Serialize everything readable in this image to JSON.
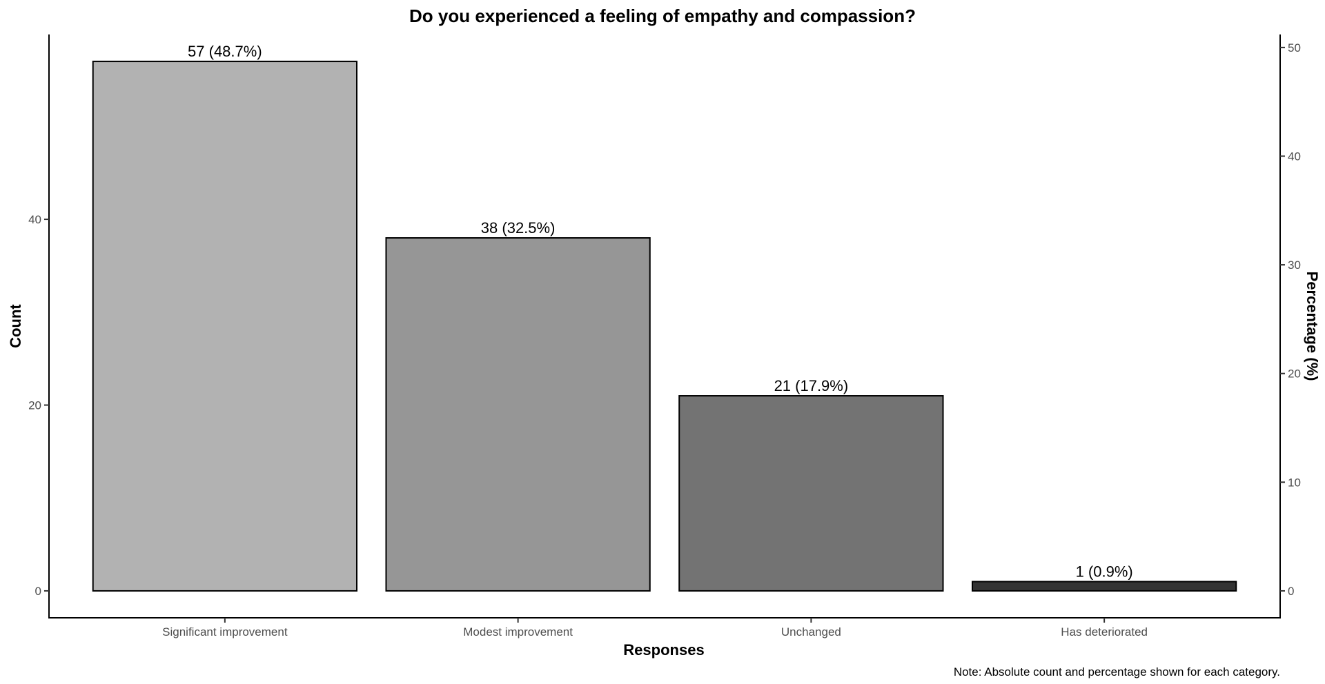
{
  "chart_data": {
    "type": "bar",
    "title": "Do you experienced a feeling of empathy and compassion?",
    "xlabel": "Responses",
    "ylabel": "Count",
    "y2label": "Percentage (%)",
    "note": "Note: Absolute count and percentage shown for each category.",
    "categories": [
      "Significant improvement",
      "Modest improvement",
      "Unchanged",
      "Has deteriorated"
    ],
    "values": [
      57,
      38,
      21,
      1
    ],
    "data_labels": [
      "57 (48.7%)",
      "38 (32.5%)",
      "21 (17.9%)",
      "1 (0.9%)"
    ],
    "bar_colors": [
      "#b2b2b2",
      "#969696",
      "#737373",
      "#333333"
    ],
    "ylim": [
      -2.9,
      59.9
    ],
    "yticks": [
      0,
      20,
      40
    ],
    "y2ticks": [
      0,
      10,
      20,
      30,
      40,
      50
    ],
    "y2_per_count": 0.8547,
    "grid": false,
    "legend": "none"
  }
}
